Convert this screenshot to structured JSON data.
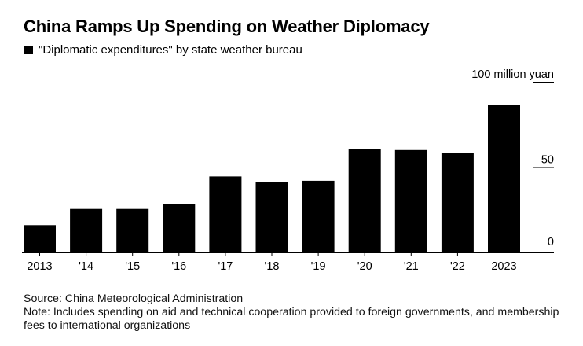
{
  "title": "China Ramps Up Spending on Weather Diplomacy",
  "legend": {
    "label": "\"Diplomatic expenditures\" by state weather bureau",
    "color": "#000000"
  },
  "chart_data": {
    "type": "bar",
    "title": "China Ramps Up Spending on Weather Diplomacy",
    "categories": [
      "2013",
      "'14",
      "'15",
      "'16",
      "'17",
      "'18",
      "'19",
      "'20",
      "'21",
      "'22",
      "2023"
    ],
    "series": [
      {
        "name": "\"Diplomatic expenditures\" by state weather bureau",
        "values": [
          16,
          25.5,
          25.5,
          28.5,
          44.5,
          41,
          42,
          60.5,
          60,
          58.5,
          86.5
        ]
      }
    ],
    "ylabel": "100 million yuan",
    "xlabel": "",
    "ylim": [
      0,
      100
    ],
    "yticks": [
      0,
      50,
      100
    ],
    "ytick_labels": [
      "0",
      "50",
      "100 million yuan"
    ],
    "grid": false,
    "bar_color": "#000000",
    "axis_position": "right"
  },
  "footer": {
    "source": "Source: China Meteorological Administration",
    "note": "Note: Includes spending on aid and technical cooperation provided to foreign governments, and membership fees to international organizations"
  }
}
